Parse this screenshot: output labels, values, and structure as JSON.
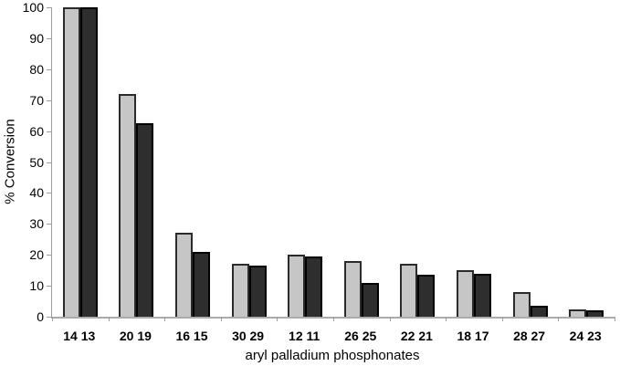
{
  "chart_data": {
    "type": "bar",
    "title": "",
    "xlabel": "aryl palladium phosphonates",
    "ylabel": "% Conversion",
    "ylim": [
      0,
      100
    ],
    "yticks": [
      0,
      10,
      20,
      30,
      40,
      50,
      60,
      70,
      80,
      90,
      100
    ],
    "grid": "off",
    "legend": "none",
    "background_color": "#ffffff",
    "axis_color": "#9d9d9d",
    "categories": [
      "14 13",
      "20 19",
      "16 15",
      "30 29",
      "12 11",
      "26 25",
      "22 21",
      "18 17",
      "28 27",
      "24 23"
    ],
    "series": [
      {
        "name": "light-gray-bar",
        "fill_color": "#c6c6c6",
        "border_color": "#2b2b2b",
        "values": [
          100,
          72,
          27,
          17,
          20,
          18,
          17,
          15,
          8,
          2.5
        ]
      },
      {
        "name": "dark-gray-bar",
        "fill_color": "#2e2e2e",
        "border_color": "#000000",
        "values": [
          100,
          62.5,
          21,
          16.5,
          19.5,
          11,
          13.5,
          14,
          3.5,
          2
        ]
      }
    ]
  }
}
